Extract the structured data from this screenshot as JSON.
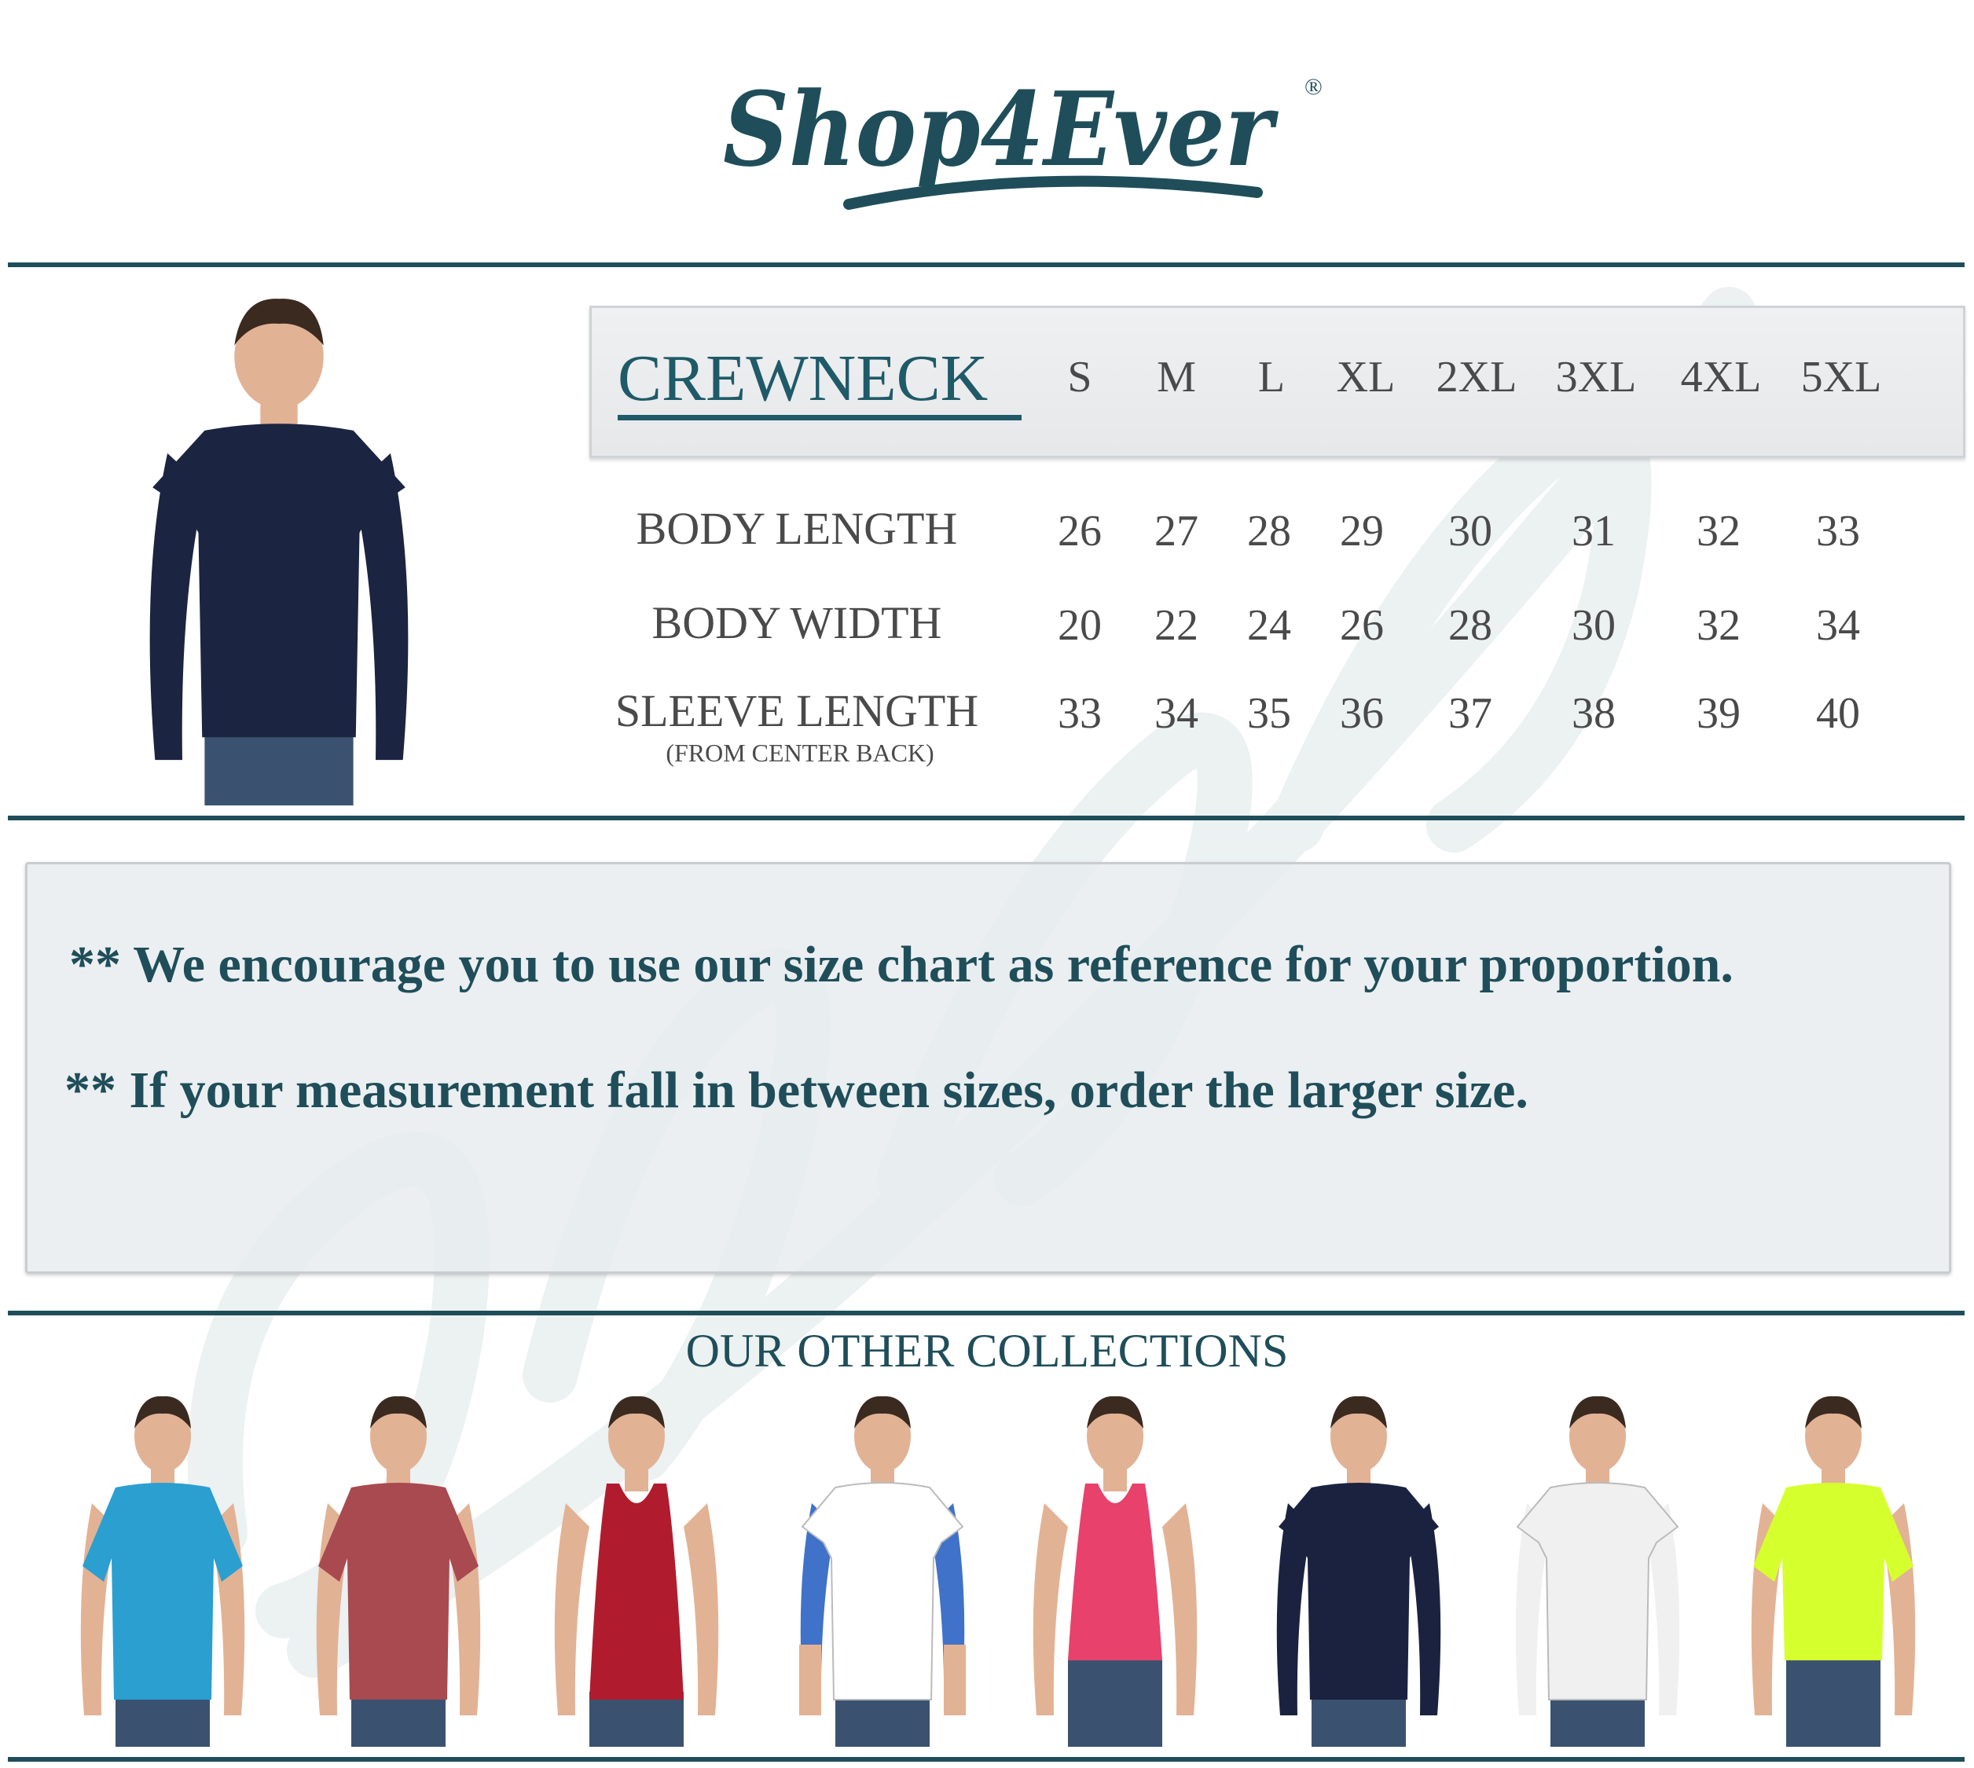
{
  "brand": {
    "logo_text": "Shop4Ever",
    "registered_mark": "®",
    "trademark": "™",
    "color": "#1f4e5a"
  },
  "size_chart": {
    "title": "CREWNECK",
    "sizes": [
      "S",
      "M",
      "L",
      "XL",
      "2XL",
      "3XL",
      "4XL",
      "5XL"
    ],
    "rows": [
      {
        "label": "BODY LENGTH",
        "sublabel": "",
        "values": [
          "26",
          "27",
          "28",
          "29",
          "30",
          "31",
          "32",
          "33"
        ]
      },
      {
        "label": "BODY WIDTH",
        "sublabel": "",
        "values": [
          "20",
          "22",
          "24",
          "26",
          "28",
          "30",
          "32",
          "34"
        ]
      },
      {
        "label": "SLEEVE LENGTH",
        "sublabel": "(FROM CENTER BACK)",
        "values": [
          "33",
          "34",
          "35",
          "36",
          "37",
          "38",
          "39",
          "40"
        ]
      }
    ]
  },
  "product_image": {
    "garment": "navy crewneck sweatshirt",
    "color": "#1b2440"
  },
  "notes": [
    "** We encourage you to use our size chart as reference for your proportion.",
    "** If your measurement fall in between sizes, order the larger size."
  ],
  "collections": {
    "title": "OUR OTHER COLLECTIONS",
    "items": [
      {
        "style": "tee",
        "color": "#2a9fd0"
      },
      {
        "style": "tee",
        "color": "#a84a4f"
      },
      {
        "style": "tank",
        "color": "#b01c2e"
      },
      {
        "style": "raglan",
        "color": "#ffffff",
        "accent": "#3f72c8"
      },
      {
        "style": "crop-tank",
        "color": "#e8416b"
      },
      {
        "style": "longsleeve",
        "color": "#1a2240"
      },
      {
        "style": "longsleeve",
        "color": "#f0f0f0"
      },
      {
        "style": "crop-tee",
        "color": "#d6ff2e"
      }
    ]
  }
}
